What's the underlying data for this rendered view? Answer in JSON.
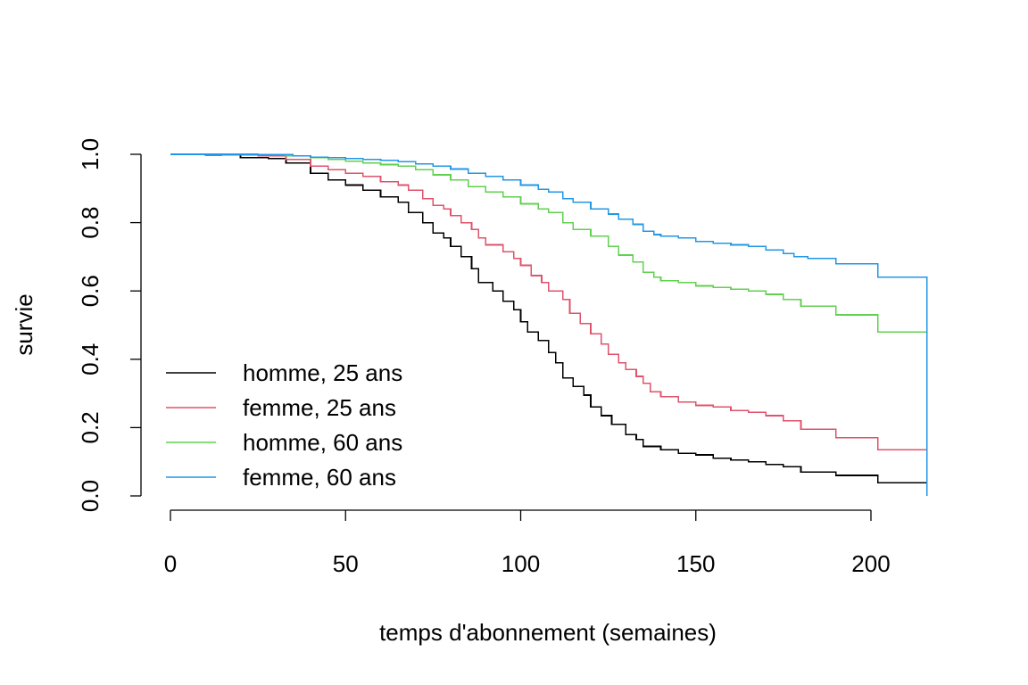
{
  "chart_data": {
    "type": "line",
    "step": true,
    "title": "",
    "xlabel": "temps d'abonnement (semaines)",
    "ylabel": "survie",
    "xlim": [
      0,
      216
    ],
    "ylim": [
      0,
      1
    ],
    "x_ticks": [
      0,
      50,
      100,
      150,
      200
    ],
    "x_tick_labels": [
      "0",
      "50",
      "100",
      "150",
      "200"
    ],
    "y_ticks": [
      0,
      0.2,
      0.4,
      0.6,
      0.8,
      1.0
    ],
    "y_tick_labels": [
      "0.0",
      "0.2",
      "0.4",
      "0.6",
      "0.8",
      "1.0"
    ],
    "grid": false,
    "legend_position": "bottom-left",
    "series": [
      {
        "name": "homme, 25 ans",
        "color": "#000000",
        "points": [
          [
            0,
            1.0
          ],
          [
            10,
            0.998
          ],
          [
            20,
            0.99
          ],
          [
            28,
            0.988
          ],
          [
            33,
            0.975
          ],
          [
            40,
            0.945
          ],
          [
            45,
            0.925
          ],
          [
            50,
            0.91
          ],
          [
            55,
            0.895
          ],
          [
            60,
            0.875
          ],
          [
            65,
            0.86
          ],
          [
            68,
            0.83
          ],
          [
            72,
            0.8
          ],
          [
            75,
            0.77
          ],
          [
            78,
            0.755
          ],
          [
            80,
            0.73
          ],
          [
            83,
            0.7
          ],
          [
            86,
            0.665
          ],
          [
            88,
            0.625
          ],
          [
            92,
            0.6
          ],
          [
            95,
            0.57
          ],
          [
            98,
            0.545
          ],
          [
            100,
            0.51
          ],
          [
            102,
            0.48
          ],
          [
            105,
            0.455
          ],
          [
            108,
            0.42
          ],
          [
            110,
            0.39
          ],
          [
            112,
            0.345
          ],
          [
            115,
            0.32
          ],
          [
            118,
            0.295
          ],
          [
            120,
            0.26
          ],
          [
            123,
            0.235
          ],
          [
            126,
            0.21
          ],
          [
            130,
            0.18
          ],
          [
            133,
            0.165
          ],
          [
            135,
            0.145
          ],
          [
            140,
            0.135
          ],
          [
            145,
            0.125
          ],
          [
            150,
            0.12
          ],
          [
            155,
            0.11
          ],
          [
            160,
            0.105
          ],
          [
            165,
            0.1
          ],
          [
            170,
            0.092
          ],
          [
            175,
            0.085
          ],
          [
            180,
            0.07
          ],
          [
            190,
            0.06
          ],
          [
            202,
            0.038
          ],
          [
            216,
            0.036
          ],
          [
            216,
            0.0
          ]
        ]
      },
      {
        "name": "femme, 25 ans",
        "color": "#DF536B",
        "points": [
          [
            0,
            1.0
          ],
          [
            15,
            0.998
          ],
          [
            25,
            0.995
          ],
          [
            33,
            0.985
          ],
          [
            40,
            0.965
          ],
          [
            45,
            0.955
          ],
          [
            50,
            0.945
          ],
          [
            55,
            0.935
          ],
          [
            60,
            0.92
          ],
          [
            65,
            0.91
          ],
          [
            68,
            0.895
          ],
          [
            72,
            0.87
          ],
          [
            75,
            0.85
          ],
          [
            78,
            0.84
          ],
          [
            80,
            0.82
          ],
          [
            83,
            0.8
          ],
          [
            86,
            0.78
          ],
          [
            88,
            0.755
          ],
          [
            90,
            0.735
          ],
          [
            95,
            0.715
          ],
          [
            98,
            0.695
          ],
          [
            100,
            0.675
          ],
          [
            103,
            0.645
          ],
          [
            106,
            0.625
          ],
          [
            108,
            0.6
          ],
          [
            112,
            0.575
          ],
          [
            114,
            0.535
          ],
          [
            117,
            0.505
          ],
          [
            120,
            0.475
          ],
          [
            123,
            0.445
          ],
          [
            125,
            0.415
          ],
          [
            128,
            0.39
          ],
          [
            130,
            0.37
          ],
          [
            133,
            0.35
          ],
          [
            135,
            0.33
          ],
          [
            137,
            0.305
          ],
          [
            140,
            0.29
          ],
          [
            145,
            0.275
          ],
          [
            150,
            0.265
          ],
          [
            155,
            0.26
          ],
          [
            160,
            0.25
          ],
          [
            165,
            0.245
          ],
          [
            170,
            0.235
          ],
          [
            175,
            0.22
          ],
          [
            180,
            0.195
          ],
          [
            190,
            0.17
          ],
          [
            202,
            0.135
          ],
          [
            216,
            0.132
          ],
          [
            216,
            0.0
          ]
        ]
      },
      {
        "name": "homme, 60 ans",
        "color": "#61D04F",
        "points": [
          [
            0,
            1.0
          ],
          [
            20,
            0.999
          ],
          [
            33,
            0.995
          ],
          [
            40,
            0.99
          ],
          [
            45,
            0.985
          ],
          [
            50,
            0.98
          ],
          [
            55,
            0.975
          ],
          [
            60,
            0.97
          ],
          [
            65,
            0.965
          ],
          [
            70,
            0.955
          ],
          [
            75,
            0.94
          ],
          [
            80,
            0.925
          ],
          [
            85,
            0.905
          ],
          [
            90,
            0.89
          ],
          [
            95,
            0.875
          ],
          [
            100,
            0.855
          ],
          [
            105,
            0.84
          ],
          [
            108,
            0.83
          ],
          [
            112,
            0.8
          ],
          [
            115,
            0.78
          ],
          [
            120,
            0.76
          ],
          [
            125,
            0.73
          ],
          [
            128,
            0.705
          ],
          [
            132,
            0.685
          ],
          [
            135,
            0.655
          ],
          [
            138,
            0.64
          ],
          [
            140,
            0.63
          ],
          [
            145,
            0.625
          ],
          [
            150,
            0.615
          ],
          [
            155,
            0.61
          ],
          [
            160,
            0.605
          ],
          [
            165,
            0.6
          ],
          [
            170,
            0.59
          ],
          [
            175,
            0.575
          ],
          [
            180,
            0.555
          ],
          [
            190,
            0.53
          ],
          [
            202,
            0.48
          ],
          [
            216,
            0.48
          ],
          [
            216,
            0.0
          ]
        ]
      },
      {
        "name": "femme, 60 ans",
        "color": "#2297E6",
        "points": [
          [
            0,
            1.0
          ],
          [
            25,
            0.999
          ],
          [
            35,
            0.995
          ],
          [
            40,
            0.992
          ],
          [
            45,
            0.99
          ],
          [
            50,
            0.988
          ],
          [
            55,
            0.985
          ],
          [
            60,
            0.982
          ],
          [
            65,
            0.978
          ],
          [
            70,
            0.972
          ],
          [
            75,
            0.965
          ],
          [
            80,
            0.957
          ],
          [
            85,
            0.945
          ],
          [
            90,
            0.935
          ],
          [
            95,
            0.925
          ],
          [
            100,
            0.91
          ],
          [
            105,
            0.897
          ],
          [
            108,
            0.89
          ],
          [
            112,
            0.87
          ],
          [
            115,
            0.86
          ],
          [
            120,
            0.84
          ],
          [
            125,
            0.825
          ],
          [
            128,
            0.81
          ],
          [
            132,
            0.795
          ],
          [
            135,
            0.775
          ],
          [
            138,
            0.765
          ],
          [
            140,
            0.76
          ],
          [
            145,
            0.755
          ],
          [
            150,
            0.745
          ],
          [
            155,
            0.74
          ],
          [
            160,
            0.735
          ],
          [
            165,
            0.73
          ],
          [
            170,
            0.72
          ],
          [
            175,
            0.71
          ],
          [
            178,
            0.7
          ],
          [
            182,
            0.695
          ],
          [
            190,
            0.68
          ],
          [
            202,
            0.64
          ],
          [
            216,
            0.64
          ],
          [
            216,
            0.0
          ]
        ]
      }
    ]
  }
}
